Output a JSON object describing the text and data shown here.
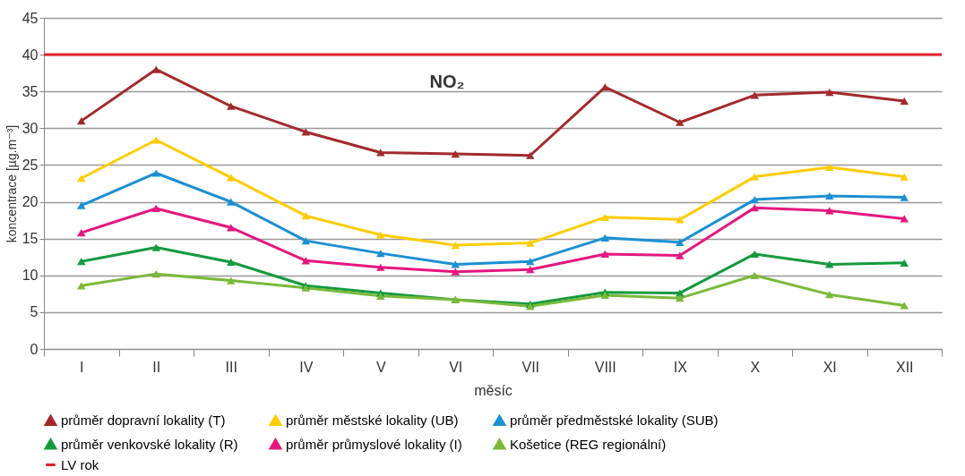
{
  "chart_data": {
    "type": "line",
    "xlabel": "měsíc",
    "ylabel": "koncentrace [µg.m⁻³]",
    "categories": [
      "I",
      "II",
      "III",
      "IV",
      "V",
      "VI",
      "VII",
      "VIII",
      "IX",
      "X",
      "XI",
      "XII"
    ],
    "series": [
      {
        "name": "průměr dopravní lokality (T)",
        "color": "#a32a2c",
        "values": [
          31,
          38,
          33,
          29.5,
          26.7,
          26.5,
          26.3,
          35.6,
          30.8,
          34.5,
          34.9,
          33.7
        ]
      },
      {
        "name": "průměr městské lokality (UB)",
        "color": "#ffcc00",
        "values": [
          23.2,
          28.4,
          23.3,
          18.1,
          15.5,
          14.1,
          14.4,
          17.9,
          17.6,
          23.4,
          24.7,
          23.4
        ]
      },
      {
        "name": "průměr předměstské lokality (SUB)",
        "color": "#1b8fd2",
        "values": [
          19.5,
          23.9,
          20,
          14.7,
          13,
          11.5,
          11.9,
          15.1,
          14.5,
          20.3,
          20.8,
          20.6
        ]
      },
      {
        "name": "průměr venkovské lokality (R)",
        "color": "#149a3e",
        "values": [
          11.9,
          13.8,
          11.8,
          8.6,
          7.6,
          6.7,
          6.1,
          7.7,
          7.6,
          12.9,
          11.5,
          11.7
        ]
      },
      {
        "name": "průměr průmyslové lokality (I)",
        "color": "#e5177f",
        "values": [
          15.8,
          19.1,
          16.5,
          12.0,
          11.1,
          10.5,
          10.8,
          12.9,
          12.7,
          19.2,
          18.8,
          17.7
        ]
      },
      {
        "name": "Košetice (REG regionální)",
        "color": "#7ab93a",
        "values": [
          8.6,
          10.2,
          9.3,
          8.3,
          7.2,
          6.7,
          5.8,
          7.3,
          6.9,
          10.0,
          7.4,
          5.9
        ]
      }
    ],
    "ylim": [
      0,
      45
    ],
    "yticks": [
      0,
      5,
      10,
      15,
      20,
      25,
      30,
      35,
      40,
      45
    ],
    "ref_lines": [
      {
        "axis": "y",
        "value": 40,
        "label": "LV rok",
        "color": "#e4202a"
      }
    ],
    "annotations": [
      "NO₂"
    ],
    "grid": "y",
    "legend": "bottom",
    "marker": "triangle"
  }
}
